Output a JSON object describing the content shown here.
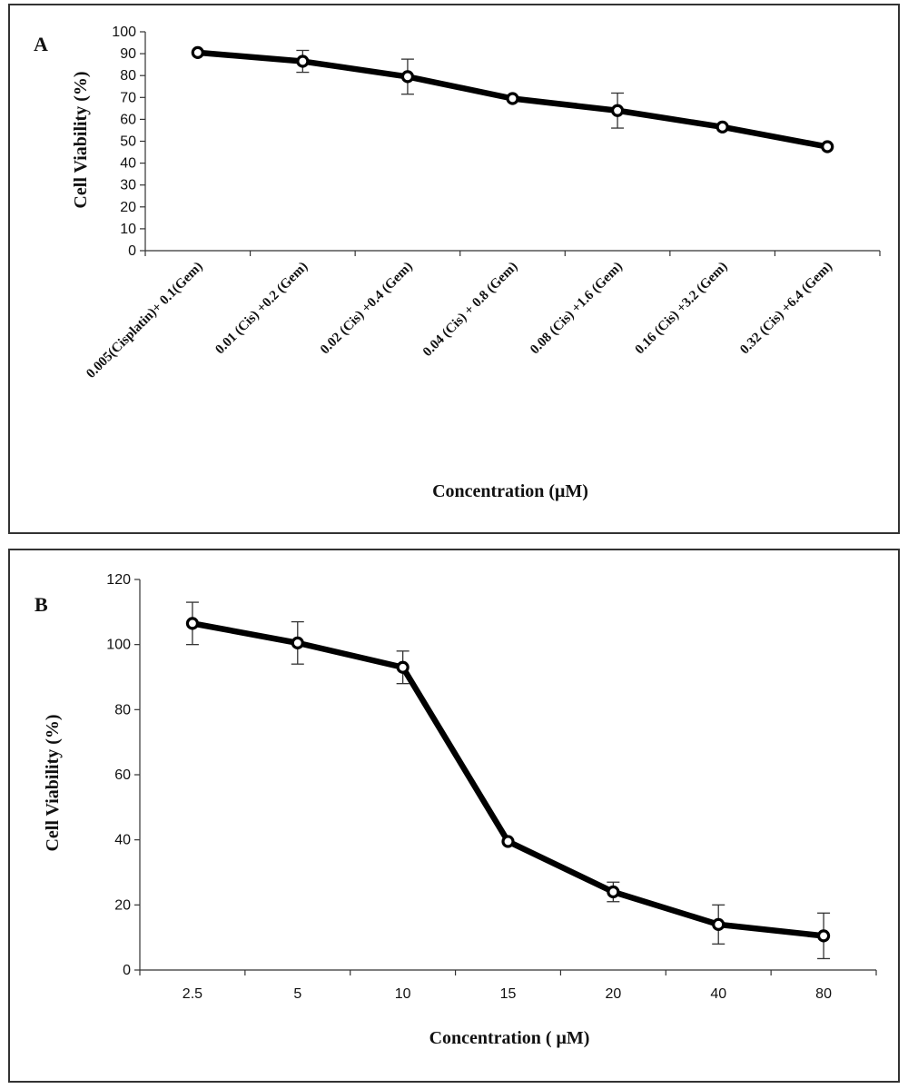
{
  "chart_data": [
    {
      "panel_label": "A",
      "type": "line",
      "categories": [
        "0.005(Cisplatin)+ 0.1(Gem)",
        "0.01 (Cis) +0.2 (Gem)",
        "0.02 (Cis) +0.4 (Gem)",
        "0.04 (Cis) + 0.8 (Gem)",
        "0.08 (Cis) +1.6 (Gem)",
        "0.16 (Cis) +3.2 (Gem)",
        "0.32 (Cis) +6.4 (Gem)"
      ],
      "series": [
        {
          "values": [
            90.5,
            86.5,
            79.5,
            69.5,
            64.0,
            56.5,
            47.5
          ],
          "error": [
            0.5,
            5.0,
            8.0,
            0.5,
            8.0,
            0.5,
            0.5
          ]
        }
      ],
      "xlabel": "Concentration (μM)",
      "ylabel": "Cell Viability (%)",
      "ylim": [
        0,
        100
      ],
      "yticks": [
        0,
        10,
        20,
        30,
        40,
        50,
        60,
        70,
        80,
        90,
        100
      ],
      "grid": false,
      "line_color": "#000000"
    },
    {
      "panel_label": "B",
      "type": "line",
      "categories": [
        "2.5",
        "5",
        "10",
        "15",
        "20",
        "40",
        "80"
      ],
      "series": [
        {
          "values": [
            106.5,
            100.5,
            93.0,
            39.5,
            24.0,
            14.0,
            10.5
          ],
          "error": [
            6.5,
            6.5,
            5.0,
            0.5,
            3.0,
            6.0,
            7.0
          ]
        }
      ],
      "xlabel": "Concentration ( μM)",
      "ylabel": "Cell Viability (%)",
      "ylim": [
        0,
        120
      ],
      "yticks": [
        0,
        20,
        40,
        60,
        80,
        100,
        120
      ],
      "grid": false,
      "line_color": "#000000"
    }
  ]
}
